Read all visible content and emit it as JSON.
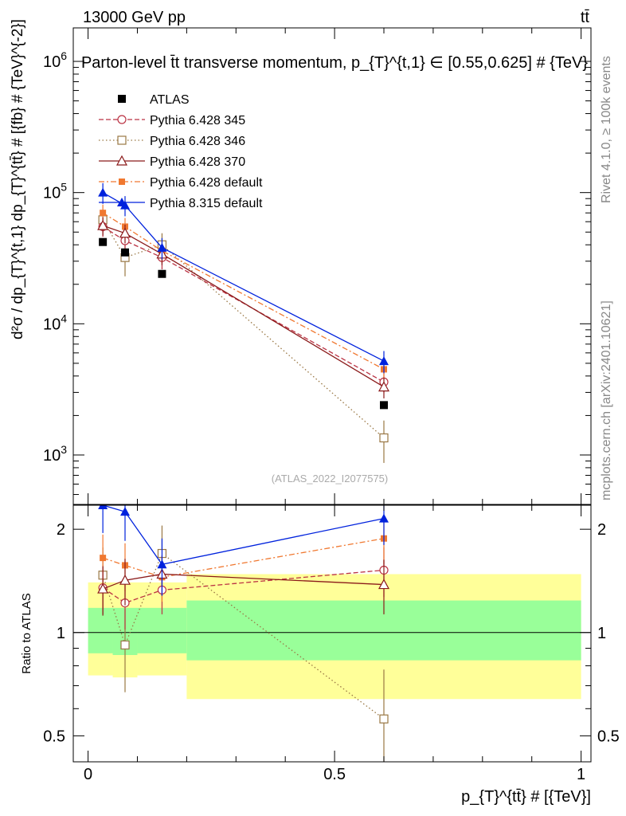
{
  "header": {
    "energy_label": "13000 GeV pp",
    "process_label": "tt̄"
  },
  "side_labels": {
    "rivet": "Rivet 4.1.0, ≥ 100k events",
    "source": "mcplots.cern.ch [arXiv:2401.10621]"
  },
  "chart_data": [
    {
      "type": "line",
      "panel": "main",
      "title": "Parton-level t̄t transverse momentum, p_{T}^{t,1} ∈ [0.55,0.625] # {TeV}",
      "xlabel": "p_{T}^{tt̄} # [{TeV}]",
      "ylabel": "d²σ / dp_{T}^{t,1} dp_{T}^{tt̄} # [{fb} # {TeV}^{-2}]",
      "yscale": "log",
      "xlim": [
        -0.03,
        1.02
      ],
      "ylim": [
        420,
        1800000
      ],
      "y_tick_labels": [
        "10^3",
        "10^4",
        "10^5",
        "10^6"
      ],
      "watermark": "(ATLAS_2022_I2077575)",
      "x": [
        0.03,
        0.075,
        0.15,
        0.6
      ],
      "series": [
        {
          "name": "ATLAS",
          "color": "#000000",
          "marker": "square-filled",
          "dash": "none",
          "values": [
            42000,
            35000,
            24000,
            2400
          ],
          "err": [
            0,
            0,
            0,
            0
          ]
        },
        {
          "name": "Pythia 6.428 345",
          "color": "#bb3344",
          "marker": "circle-open",
          "dash": "6,3",
          "values": [
            55000,
            43000,
            32000,
            3600
          ],
          "err": [
            9000,
            7000,
            6000,
            600
          ]
        },
        {
          "name": "Pythia 6.428 346",
          "color": "#997744",
          "marker": "square-open",
          "dash": "1.5,3",
          "values": [
            62000,
            32000,
            40000,
            1350
          ],
          "err": [
            12000,
            9000,
            9000,
            480
          ]
        },
        {
          "name": "Pythia 6.428 370",
          "color": "#8b1a1a",
          "marker": "triangle-open",
          "dash": "none",
          "values": [
            56000,
            49000,
            34000,
            3300
          ],
          "err": [
            9000,
            8000,
            6000,
            600
          ]
        },
        {
          "name": "Pythia 6.428 default",
          "color": "#f07830",
          "marker": "square-filled-small",
          "dash": "7,3,2,3",
          "values": [
            70000,
            55000,
            36000,
            4500
          ],
          "err": [
            11000,
            9000,
            7000,
            800
          ]
        },
        {
          "name": "Pythia 8.315 default",
          "color": "#0022dd",
          "marker": "triangle-filled",
          "dash": "none",
          "values": [
            100000,
            80000,
            38000,
            5200
          ],
          "err": [
            18000,
            14000,
            7000,
            1000
          ]
        }
      ]
    },
    {
      "type": "line",
      "panel": "ratio",
      "ylabel": "Ratio to ATLAS",
      "xlabel": "p_{T}^{tt̄} # [{TeV}]",
      "yscale": "log",
      "xlim": [
        -0.03,
        1.02
      ],
      "ylim": [
        0.42,
        2.35
      ],
      "y_ticks": [
        0.5,
        1,
        2
      ],
      "x_ticks": [
        0,
        0.5,
        1
      ],
      "x_tick_labels": [
        "0",
        "0.5",
        "1"
      ],
      "bands": {
        "bins": [
          [
            0,
            0.05
          ],
          [
            0.05,
            0.1
          ],
          [
            0.1,
            0.2
          ],
          [
            0.2,
            1.0
          ]
        ],
        "stat_low": [
          0.87,
          0.86,
          0.87,
          0.83
        ],
        "stat_high": [
          1.18,
          1.18,
          1.18,
          1.24
        ],
        "total_low": [
          0.75,
          0.74,
          0.75,
          0.64
        ],
        "total_high": [
          1.4,
          1.4,
          1.4,
          1.48
        ],
        "stat_color": "#99ff99",
        "total_color": "#ffff99"
      },
      "x": [
        0.03,
        0.075,
        0.15,
        0.6
      ],
      "series": [
        {
          "name": "Pythia 6.428 345",
          "values": [
            1.35,
            1.22,
            1.33,
            1.52
          ],
          "err": [
            0.22,
            0.2,
            0.2,
            0.25
          ]
        },
        {
          "name": "Pythia 6.428 346",
          "values": [
            1.47,
            0.92,
            1.7,
            0.56
          ],
          "err": [
            0.3,
            0.25,
            0.35,
            0.22
          ]
        },
        {
          "name": "Pythia 6.428 370",
          "values": [
            1.34,
            1.42,
            1.48,
            1.38
          ],
          "err": [
            0.22,
            0.22,
            0.2,
            0.25
          ]
        },
        {
          "name": "Pythia 6.428 default",
          "values": [
            1.65,
            1.57,
            1.45,
            1.88
          ],
          "err": [
            0.28,
            0.25,
            0.22,
            0.3
          ]
        },
        {
          "name": "Pythia 8.315 default",
          "values": [
            2.35,
            2.25,
            1.58,
            2.15
          ],
          "err": [
            0.4,
            0.4,
            0.3,
            0.35
          ]
        }
      ]
    }
  ]
}
